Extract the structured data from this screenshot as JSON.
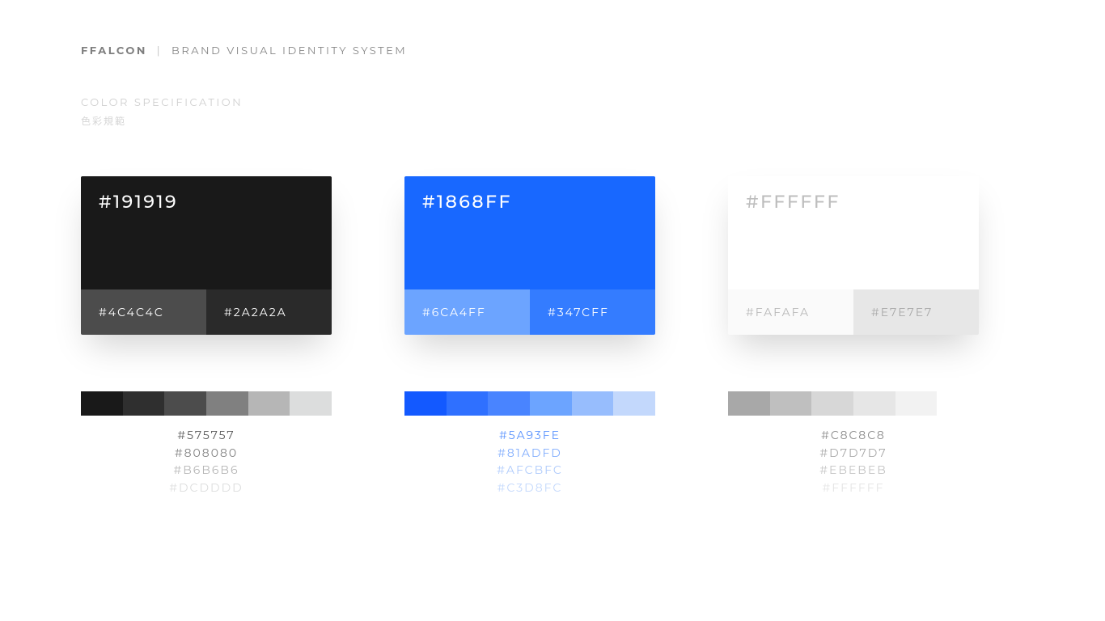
{
  "header": {
    "brand": "FFALCON",
    "divider": "|",
    "subtitle": "BRAND VISUAL IDENTITY SYSTEM"
  },
  "section": {
    "title": "COLOR SPECIFICATION",
    "subtitle": "色彩規範"
  },
  "columns": [
    {
      "main": {
        "hex": "#191919",
        "label": "#191919",
        "text_color": "#ffffff"
      },
      "sub_left": {
        "hex": "#4c4c4c",
        "label": "#4C4C4C",
        "text_color": "#ffffff"
      },
      "sub_right": {
        "hex": "#2a2a2a",
        "label": "#2A2A2A",
        "text_color": "#ffffff"
      },
      "gradient": [
        "#191919",
        "#2f2f2f",
        "#4c4c4c",
        "#808080",
        "#b6b6b6",
        "#dcdddd"
      ],
      "list": [
        {
          "label": "#575757",
          "color": "#575757"
        },
        {
          "label": "#808080",
          "color": "#808080"
        },
        {
          "label": "#B6B6B6",
          "color": "#b6b6b6"
        },
        {
          "label": "#DCDDDD",
          "color": "#dcdddd"
        }
      ]
    },
    {
      "main": {
        "hex": "#1868ff",
        "label": "#1868FF",
        "text_color": "#ffffff"
      },
      "sub_left": {
        "hex": "#6ca4ff",
        "label": "#6CA4FF",
        "text_color": "#ffffff"
      },
      "sub_right": {
        "hex": "#347cff",
        "label": "#347CFF",
        "text_color": "#ffffff"
      },
      "gradient": [
        "#1359ff",
        "#2f70ff",
        "#4984ff",
        "#6ca4ff",
        "#97bdfd",
        "#c3d8fc"
      ],
      "list": [
        {
          "label": "#5A93FE",
          "color": "#5a93fe"
        },
        {
          "label": "#81ADFD",
          "color": "#81adfd"
        },
        {
          "label": "#AFCBFC",
          "color": "#afcbfc"
        },
        {
          "label": "#C3D8FC",
          "color": "#c3d8fc"
        }
      ]
    },
    {
      "main": {
        "hex": "#ffffff",
        "label": "#FFFFFF",
        "text_color": "#bdbdbd"
      },
      "sub_left": {
        "hex": "#fafafa",
        "label": "#FAFAFA",
        "text_color": "#b8b8b8"
      },
      "sub_right": {
        "hex": "#e7e7e7",
        "label": "#E7E7E7",
        "text_color": "#a8a8a8"
      },
      "gradient": [
        "#a8a8a8",
        "#bfbfbf",
        "#d7d7d7",
        "#e6e6e6",
        "#f2f2f2",
        "#ffffff"
      ],
      "list": [
        {
          "label": "#C8C8C8",
          "color": "#8a8a8a"
        },
        {
          "label": "#D7D7D7",
          "color": "#a8a8a8"
        },
        {
          "label": "#EBEBEB",
          "color": "#c4c4c4"
        },
        {
          "label": "#FFFFFF",
          "color": "#e4e4e4"
        }
      ]
    }
  ]
}
